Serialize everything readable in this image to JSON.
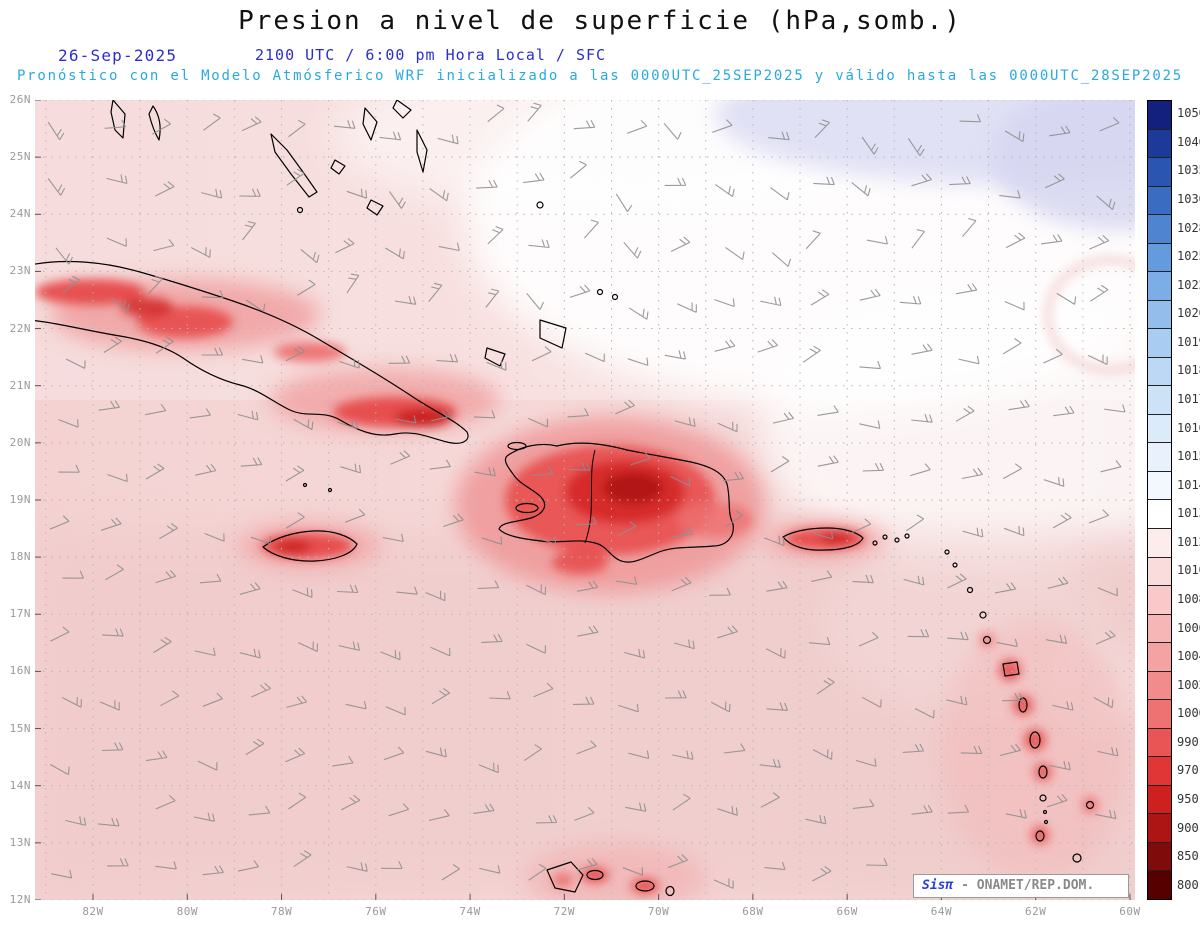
{
  "title": "Presion a nivel de superficie (hPa,somb.)",
  "header": {
    "date": "26-Sep-2025",
    "valid_time": "2100 UTC / 6:00 pm Hora Local / SFC",
    "model_line": "Pronóstico con el Modelo Atmósferico WRF inicializado a las 0000UTC_25SEP2025 y válido hasta las  0000UTC_28SEP2025"
  },
  "axes": {
    "lat_labels": [
      "26N",
      "25N",
      "24N",
      "23N",
      "22N",
      "21N",
      "20N",
      "19N",
      "18N",
      "17N",
      "16N",
      "15N",
      "14N",
      "13N",
      "12N"
    ],
    "lon_labels": [
      "82W",
      "80W",
      "78W",
      "76W",
      "74W",
      "72W",
      "70W",
      "68W",
      "66W",
      "64W",
      "62W",
      "60W"
    ]
  },
  "colorbar": {
    "values": [
      "1050",
      "1040",
      "1035",
      "1030",
      "1028",
      "1025",
      "1022",
      "1020",
      "1019",
      "1018",
      "1017",
      "1016",
      "1015",
      "1014",
      "1013",
      "1012",
      "1010",
      "1008",
      "1006",
      "1004",
      "1002",
      "1000",
      "990",
      "970",
      "950",
      "900",
      "850",
      "800"
    ],
    "colors": [
      "#14207e",
      "#1d3a9b",
      "#2a55b0",
      "#3a6cc1",
      "#4e84d0",
      "#649ade",
      "#7cade6",
      "#93beec",
      "#a9cdf1",
      "#bcd8f4",
      "#cde2f7",
      "#dcebfa",
      "#e8f1fc",
      "#f3f8fe",
      "#ffffff",
      "#fdecec",
      "#fbdcdc",
      "#f9c9c9",
      "#f7b6b6",
      "#f5a2a2",
      "#f28c8c",
      "#ee7272",
      "#e95555",
      "#e13636",
      "#cf2020",
      "#ad1515",
      "#800b0b",
      "#570000"
    ]
  },
  "credit": {
    "brand": "Sisπ",
    "org": "- ONAMET/REP.DOM."
  },
  "colors": {
    "header_blue": "#2a2ecf",
    "model_cyan": "#29a9e1",
    "axis_gray": "#9a9a9a",
    "ocean_pink": "#f5d6d6",
    "low_pressure_red": "#d62828",
    "high_pressure_lavender": "#e0e0f5"
  }
}
